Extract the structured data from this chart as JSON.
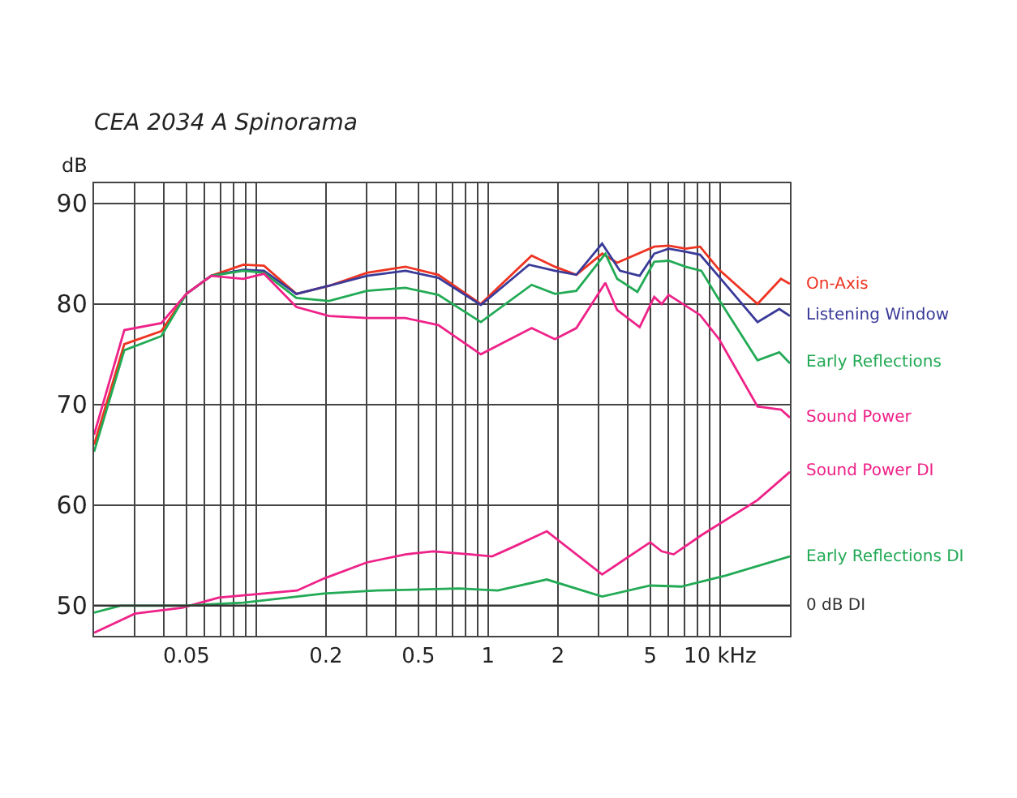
{
  "chart_data": {
    "type": "line",
    "title": "CEA 2034 A Spinorama",
    "ylabel": "dB",
    "xlim": [
      0.02,
      20
    ],
    "ylim": [
      47,
      92
    ],
    "log": "x",
    "grid": true,
    "legend": false,
    "line_style": "solid",
    "xticks": [
      {
        "value": 0.03,
        "label": null
      },
      {
        "value": 0.04,
        "label": null
      },
      0.05,
      {
        "value": 0.06,
        "label": null
      },
      {
        "value": 0.07,
        "label": null
      },
      {
        "value": 0.08,
        "label": null
      },
      {
        "value": 0.09,
        "label": null
      },
      {
        "value": 0.1,
        "label": null
      },
      0.2,
      {
        "value": 0.3,
        "label": null
      },
      {
        "value": 0.4,
        "label": null
      },
      0.5,
      {
        "value": 0.6,
        "label": null
      },
      {
        "value": 0.7,
        "label": null
      },
      {
        "value": 0.8,
        "label": null
      },
      {
        "value": 0.9,
        "label": null
      },
      1,
      2,
      {
        "value": 3,
        "label": null
      },
      {
        "value": 4,
        "label": null
      },
      5,
      {
        "value": 6,
        "label": null
      },
      {
        "value": 7,
        "label": null
      },
      {
        "value": 8,
        "label": null
      },
      {
        "value": 9,
        "label": null
      },
      {
        "value": 10,
        "label": "10 kHz"
      }
    ],
    "yticks": [
      50,
      60,
      70,
      80,
      90
    ],
    "ref_lines": [
      {
        "axis": "y",
        "value": 50,
        "label": "0 dB DI",
        "color": "#333333"
      }
    ],
    "series": [
      {
        "name": "On-Axis",
        "color": "#ee3322",
        "x": [
          0.02,
          0.027,
          0.039,
          0.05,
          0.064,
          0.088,
          0.108,
          0.149,
          0.206,
          0.3,
          0.44,
          0.61,
          0.93,
          1.54,
          1.94,
          2.4,
          3.1,
          3.6,
          5.2,
          6.0,
          7.1,
          8.2,
          9.9,
          14.5,
          18.3,
          20
        ],
        "values": [
          66,
          76,
          77.3,
          81,
          82.8,
          83.9,
          83.8,
          81,
          81.8,
          83.1,
          83.7,
          82.9,
          80,
          84.8,
          83.7,
          82.9,
          85,
          84.1,
          85.7,
          85.8,
          85.5,
          85.7,
          83.4,
          80,
          82.5,
          82
        ]
      },
      {
        "name": "Listening Window",
        "color": "#3a3a99",
        "x": [
          0.05,
          0.064,
          0.088,
          0.108,
          0.149,
          0.206,
          0.3,
          0.44,
          0.61,
          0.93,
          1.5,
          1.94,
          2.4,
          3.1,
          3.7,
          4.5,
          5.2,
          6.0,
          7.1,
          8.2,
          9.9,
          14.5,
          18,
          20
        ],
        "values": [
          81,
          82.8,
          83.4,
          83.3,
          81,
          81.8,
          82.8,
          83.3,
          82.6,
          79.9,
          83.9,
          83.3,
          82.9,
          86,
          83.3,
          82.8,
          85,
          85.5,
          85.2,
          84.9,
          82.7,
          78.2,
          79.5,
          78.8
        ]
      },
      {
        "name": "Early Reflections",
        "color": "#22aa55",
        "x": [
          0.02,
          0.027,
          0.039,
          0.05,
          0.064,
          0.088,
          0.108,
          0.149,
          0.206,
          0.3,
          0.44,
          0.61,
          0.93,
          1.54,
          1.94,
          2.4,
          3.2,
          3.6,
          4.4,
          5.2,
          6.0,
          7.1,
          8.3,
          9.9,
          14.5,
          18,
          20
        ],
        "values": [
          65.3,
          75.4,
          76.8,
          81,
          82.8,
          83.3,
          83.1,
          80.6,
          80.3,
          81.3,
          81.6,
          80.9,
          78.2,
          81.9,
          81,
          81.3,
          85,
          82.5,
          81.2,
          84.2,
          84.3,
          83.7,
          83.3,
          80.4,
          74.4,
          75.2,
          74.1
        ]
      },
      {
        "name": "Sound Power",
        "color": "#ee2288",
        "x": [
          0.02,
          0.027,
          0.039,
          0.05,
          0.064,
          0.088,
          0.108,
          0.149,
          0.206,
          0.3,
          0.44,
          0.61,
          0.93,
          1.54,
          1.94,
          2.4,
          3.2,
          3.6,
          4.5,
          5.2,
          5.6,
          6.0,
          8.2,
          9.9,
          14.5,
          18.3,
          20
        ],
        "values": [
          67,
          77.4,
          78.1,
          81,
          82.8,
          82.5,
          83,
          79.7,
          78.8,
          78.6,
          78.6,
          77.9,
          75,
          77.6,
          76.5,
          77.6,
          82.1,
          79.4,
          77.7,
          80.7,
          80,
          80.9,
          78.9,
          76.5,
          69.8,
          69.5,
          68.7
        ]
      },
      {
        "name": "Sound Power DI",
        "color": "#ee2288",
        "x": [
          0.02,
          0.03,
          0.048,
          0.069,
          0.15,
          0.196,
          0.3,
          0.44,
          0.58,
          0.84,
          1.04,
          1.3,
          1.79,
          3.1,
          5.0,
          5.6,
          6.3,
          8.3,
          14.5,
          20
        ],
        "values": [
          47.3,
          49.2,
          49.8,
          50.8,
          51.5,
          52.7,
          54.3,
          55.1,
          55.4,
          55.1,
          54.9,
          55.9,
          57.4,
          53.1,
          56.3,
          55.4,
          55.1,
          57,
          60.5,
          63.3
        ]
      },
      {
        "name": "Early Reflections DI",
        "color": "#22aa55",
        "x": [
          0.02,
          0.026,
          0.05,
          0.088,
          0.196,
          0.33,
          0.75,
          1.1,
          1.79,
          3.1,
          5,
          6.8,
          10.6,
          20
        ],
        "values": [
          49.3,
          50,
          50,
          50.3,
          51.2,
          51.5,
          51.7,
          51.5,
          52.6,
          50.9,
          52,
          51.9,
          53,
          54.9
        ]
      }
    ]
  }
}
